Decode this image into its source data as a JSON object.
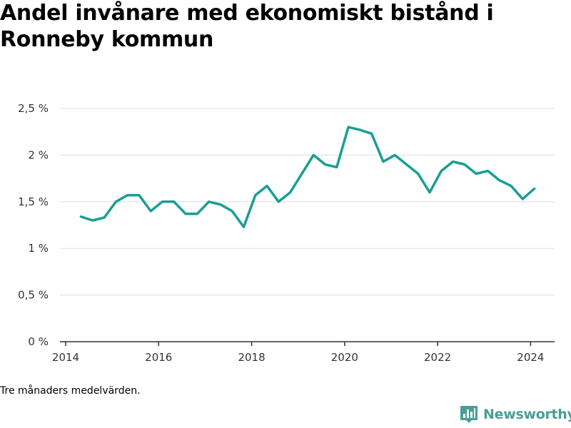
{
  "title": "Andel invånare med ekonomiskt bistånd i Ronneby kommun",
  "note": "Tre månaders medelvärden.",
  "brand": {
    "name": "Newsworthy",
    "icon": "bar-chart-pin-icon",
    "color": "#4a9e97"
  },
  "chart_data": {
    "type": "line",
    "title": "Andel invånare med ekonomiskt bistånd i Ronneby kommun",
    "xlabel": "",
    "ylabel": "",
    "xlim": [
      2014.0,
      2025.0
    ],
    "ylim": [
      0,
      2.5
    ],
    "x_ticks": [
      {
        "value": 2014,
        "label": "2014"
      },
      {
        "value": 2016,
        "label": "2016"
      },
      {
        "value": 2018,
        "label": "2018"
      },
      {
        "value": 2020,
        "label": "2020"
      },
      {
        "value": 2022,
        "label": "2022"
      },
      {
        "value": 2024,
        "label": "2024"
      }
    ],
    "y_ticks": [
      {
        "value": 0,
        "label": "0 %"
      },
      {
        "value": 0.5,
        "label": "0,5 %"
      },
      {
        "value": 1,
        "label": "1 %"
      },
      {
        "value": 1.5,
        "label": "1,5 %"
      },
      {
        "value": 2,
        "label": "2 %"
      },
      {
        "value": 2.5,
        "label": "2,5 %"
      }
    ],
    "grid": true,
    "line_color": "#1a9e93",
    "series": [
      {
        "x": [
          2014.33,
          2014.58,
          2014.83,
          2015.08,
          2015.33,
          2015.58,
          2015.83,
          2016.08,
          2016.33,
          2016.58,
          2016.83,
          2017.08,
          2017.33,
          2017.58,
          2017.83,
          2018.08,
          2018.33,
          2018.58,
          2018.83,
          2019.08,
          2019.33,
          2019.58,
          2019.83,
          2020.08,
          2020.33,
          2020.58,
          2020.83,
          2021.08,
          2021.33,
          2021.58,
          2021.83,
          2022.08,
          2022.33,
          2022.58,
          2022.83,
          2023.08,
          2023.33,
          2023.58,
          2023.83,
          2024.08
        ],
        "values": [
          1.34,
          1.3,
          1.33,
          1.5,
          1.57,
          1.57,
          1.4,
          1.5,
          1.5,
          1.37,
          1.37,
          1.5,
          1.47,
          1.4,
          1.23,
          1.57,
          1.67,
          1.5,
          1.6,
          1.8,
          2.0,
          1.9,
          1.87,
          2.3,
          2.27,
          2.23,
          1.93,
          2.0,
          1.9,
          1.8,
          1.6,
          1.83,
          1.93,
          1.9,
          1.8,
          1.83,
          1.73,
          1.67,
          1.53,
          1.64
        ]
      }
    ]
  }
}
